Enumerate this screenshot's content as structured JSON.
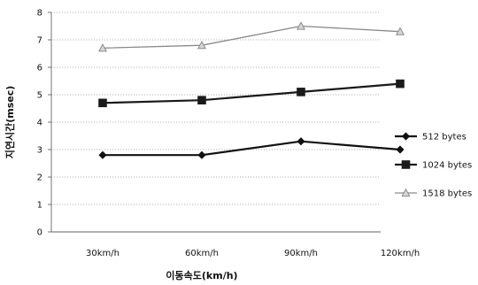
{
  "chart_data": {
    "type": "line",
    "title": "",
    "xlabel": "이동속도(km/h)",
    "ylabel": "지연시간(msec)",
    "categories": [
      "30km/h",
      "60km/h",
      "90km/h",
      "120km/h"
    ],
    "ylim": [
      0,
      8
    ],
    "yticks": [
      "0",
      "1",
      "2",
      "3",
      "4",
      "5",
      "6",
      "7",
      "8"
    ],
    "grid": true,
    "legend": "right",
    "series": [
      {
        "name": "512 bytes",
        "values": [
          2.8,
          2.8,
          3.3,
          3.0
        ],
        "color": "#111111",
        "marker": "diamond"
      },
      {
        "name": "1024 bytes",
        "values": [
          4.7,
          4.8,
          5.1,
          5.4
        ],
        "color": "#1a1a1a",
        "marker": "square"
      },
      {
        "name": "1518 bytes",
        "values": [
          6.7,
          6.8,
          7.5,
          7.3
        ],
        "color": "#8a8a8a",
        "marker": "triangle"
      }
    ]
  }
}
